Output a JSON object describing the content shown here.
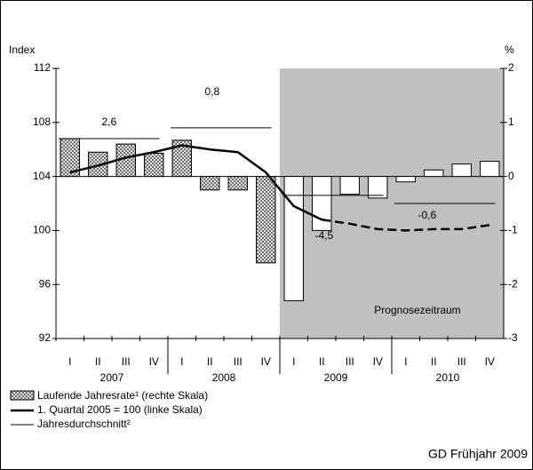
{
  "chart_data": {
    "type": "bar-line",
    "y_label": "Index",
    "y2_label": "%",
    "categories": [
      "I",
      "II",
      "III",
      "IV",
      "I",
      "II",
      "III",
      "IV",
      "I",
      "II",
      "III",
      "IV",
      "I",
      "II",
      "III",
      "IV"
    ],
    "year_labels": [
      "2007",
      "2008",
      "2009",
      "2010"
    ],
    "ylim": [
      92,
      112
    ],
    "yticks": [
      92,
      96,
      100,
      104,
      108,
      112
    ],
    "y2lim": [
      -3,
      2
    ],
    "y2ticks": [
      -3,
      -2,
      -1,
      0,
      1,
      2
    ],
    "forecast_start": 8,
    "forecast_label": "Prognosezeitraum",
    "forecast_color": "#c0c0c0",
    "series": [
      {
        "name": "Laufende Jahresrate¹ (rechte Skala)",
        "axis": "y2",
        "color": "#000000",
        "values": [
          0.7,
          0.45,
          0.6,
          0.43,
          0.67,
          -0.25,
          -0.25,
          -1.6,
          -2.3,
          -1.0,
          -0.33,
          -0.4,
          -0.1,
          0.12,
          0.23,
          0.28
        ]
      },
      {
        "name": "1. Quartal 2005 = 100 (linke Skala)",
        "color": "#000000",
        "dash_from": 9,
        "values": [
          104.3,
          104.8,
          105.4,
          105.8,
          106.3,
          106.0,
          105.8,
          104.3,
          101.8,
          100.8,
          100.5,
          100.1,
          100.0,
          100.1,
          100.1,
          100.4
        ]
      }
    ],
    "annual_averages": {
      "name": "Jahresdurchschnitt²",
      "values": [
        106.8,
        107.6,
        102.6,
        102.0
      ],
      "labels": [
        "2,6",
        "0,8",
        "-4,5",
        "-0,6"
      ]
    },
    "source": "GD Frühjahr 2009"
  }
}
